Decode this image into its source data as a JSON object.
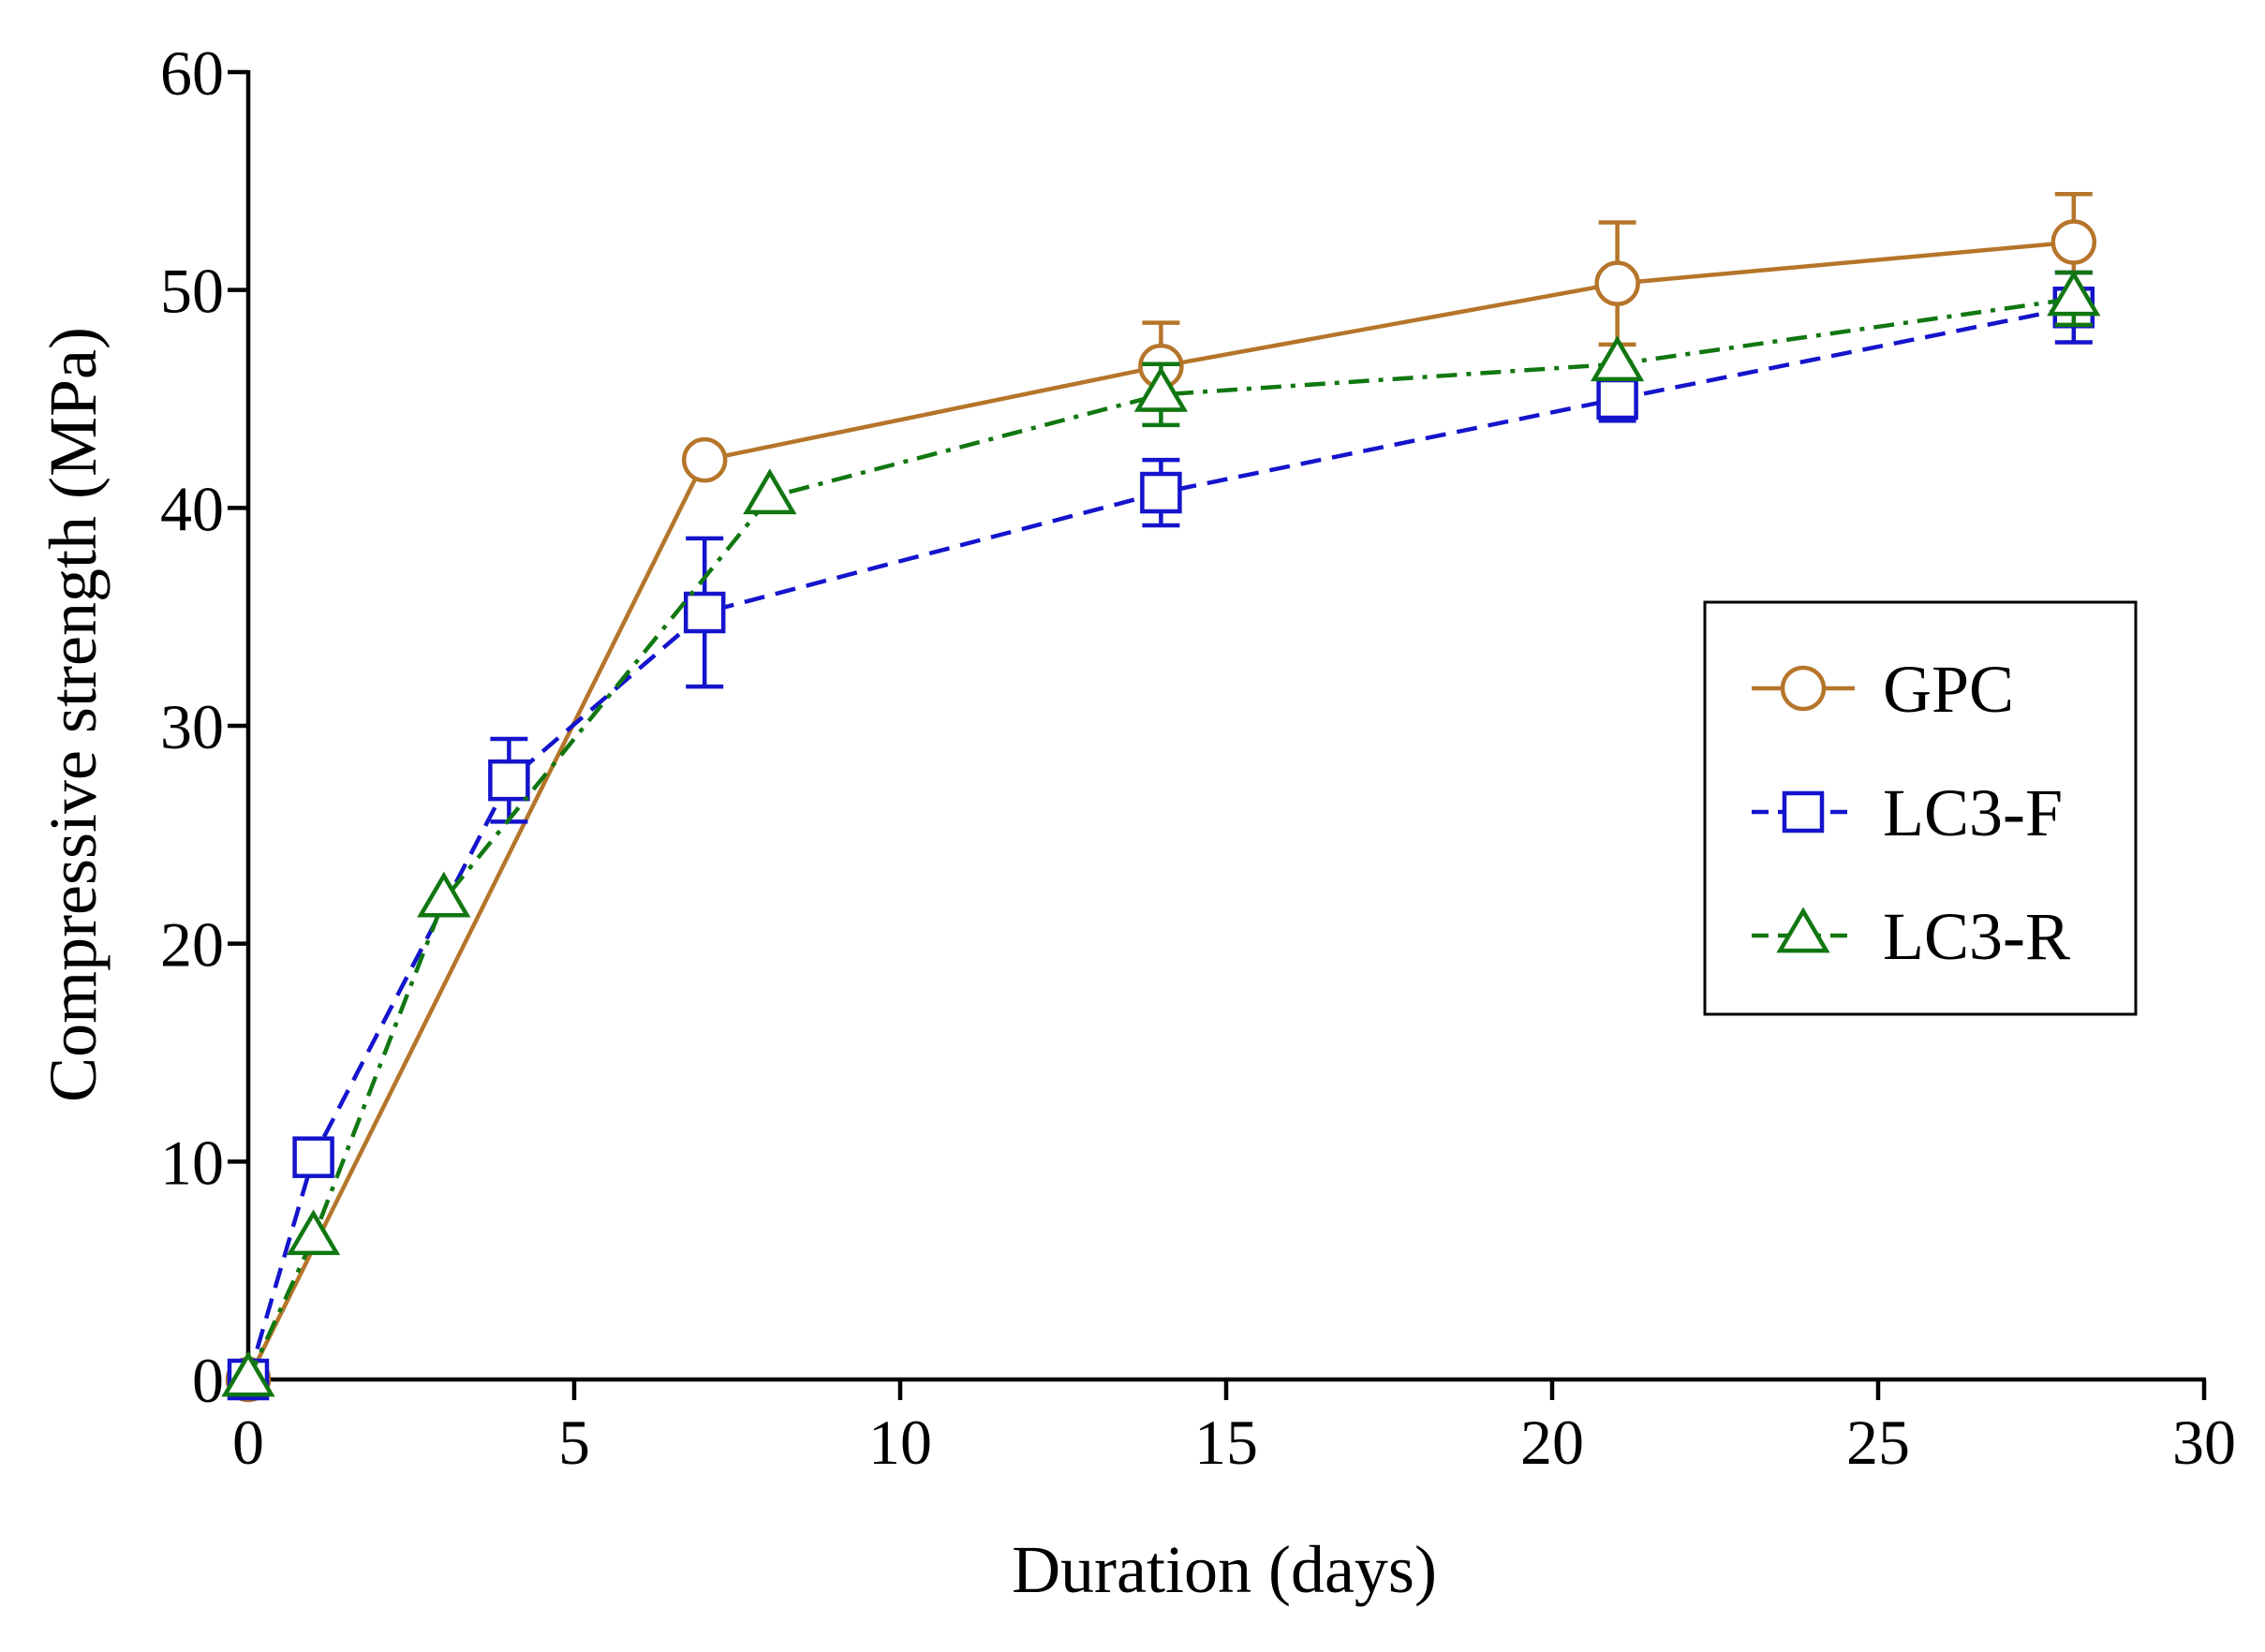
{
  "chart_data": {
    "type": "line",
    "title": "",
    "xlabel": "Duration (days)",
    "ylabel": "Compressive strength (MPa)",
    "xlim": [
      0,
      30
    ],
    "ylim": [
      0,
      60
    ],
    "x_ticks": [
      0,
      5,
      10,
      15,
      20,
      25,
      30
    ],
    "y_ticks": [
      0,
      10,
      20,
      30,
      40,
      50,
      60
    ],
    "grid": false,
    "legend_position": "right",
    "series": [
      {
        "name": "GPC",
        "color": "#B5752A",
        "marker": "circle",
        "line_style": "solid",
        "x": [
          0,
          7,
          14,
          21,
          28
        ],
        "y": [
          0,
          42.2,
          46.5,
          50.3,
          52.2
        ],
        "error": [
          0,
          0,
          2.0,
          2.8,
          2.2
        ]
      },
      {
        "name": "LC3-F",
        "color": "#1414CC",
        "marker": "square",
        "line_style": "dashed",
        "x": [
          0,
          1,
          4,
          7,
          14,
          21,
          28
        ],
        "y": [
          0,
          10.2,
          27.5,
          35.2,
          40.7,
          45.0,
          49.2
        ],
        "error": [
          0,
          0,
          1.9,
          3.4,
          1.5,
          1.0,
          1.6
        ]
      },
      {
        "name": "LC3-R",
        "color": "#117711",
        "marker": "triangle",
        "line_style": "dashdot",
        "x": [
          0,
          1,
          3,
          8,
          14,
          21,
          28
        ],
        "y": [
          0,
          6.5,
          22.0,
          40.5,
          45.2,
          46.6,
          49.6
        ],
        "error": [
          0,
          0,
          0,
          0,
          1.4,
          0,
          1.2
        ]
      }
    ]
  }
}
